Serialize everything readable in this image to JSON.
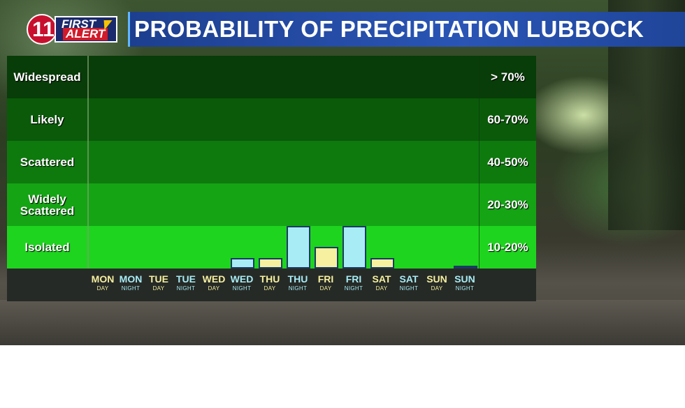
{
  "header": {
    "logo_number": "11",
    "logo_first": "FIRST",
    "logo_alert": "ALERT",
    "title": "PROBABILITY OF PRECIPITATION LUBBOCK"
  },
  "colors": {
    "day_bar": "#f6f0a0",
    "night_bar": "#a8ecf6",
    "band_colors": [
      "#083c08",
      "#0a5a0a",
      "#0e7a0e",
      "#14a414",
      "#1ed41e"
    ]
  },
  "chart_data": {
    "type": "bar",
    "title": "PROBABILITY OF PRECIPITATION LUBBOCK",
    "categories": [
      {
        "day": "MON",
        "period": "DAY"
      },
      {
        "day": "MON",
        "period": "NIGHT"
      },
      {
        "day": "TUE",
        "period": "DAY"
      },
      {
        "day": "TUE",
        "period": "NIGHT"
      },
      {
        "day": "WED",
        "period": "DAY"
      },
      {
        "day": "WED",
        "period": "NIGHT"
      },
      {
        "day": "THU",
        "period": "DAY"
      },
      {
        "day": "THU",
        "period": "NIGHT"
      },
      {
        "day": "FRI",
        "period": "DAY"
      },
      {
        "day": "FRI",
        "period": "NIGHT"
      },
      {
        "day": "SAT",
        "period": "DAY"
      },
      {
        "day": "SAT",
        "period": "NIGHT"
      },
      {
        "day": "SUN",
        "period": "DAY"
      },
      {
        "day": "SUN",
        "period": "NIGHT"
      }
    ],
    "values": [
      0,
      0,
      0,
      0,
      0,
      5,
      5,
      20,
      10,
      20,
      5,
      0,
      0,
      1
    ],
    "ylim": [
      0,
      100
    ],
    "bands": [
      {
        "label": "Widespread",
        "range": "> 70%"
      },
      {
        "label": "Likely",
        "range": "60-70%"
      },
      {
        "label": "Scattered",
        "range": "40-50%"
      },
      {
        "label": "Widely Scattered",
        "range": "20-30%"
      },
      {
        "label": "Isolated",
        "range": "10-20%"
      }
    ]
  }
}
